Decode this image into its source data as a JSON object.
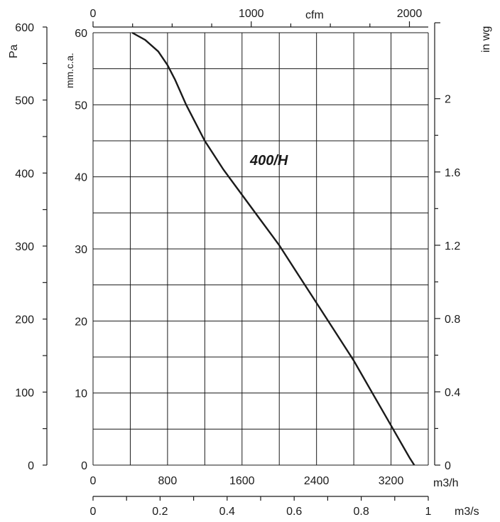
{
  "chart_data": {
    "type": "line",
    "annotation": "400/H",
    "x": {
      "unit": "m3/h",
      "range": [
        0,
        3600
      ],
      "ticks": [
        0,
        800,
        1600,
        2400,
        3200
      ],
      "tick_labels": [
        "0",
        "800",
        "1600",
        "2400",
        "3200"
      ]
    },
    "x_secondary_bottom": {
      "unit": "m3/s",
      "range": [
        0,
        1
      ],
      "ticks": [
        0,
        0.2,
        0.4,
        0.6,
        0.8,
        1
      ],
      "tick_labels": [
        "0",
        "0.2",
        "0.4",
        "0.6",
        "0.8",
        "1"
      ]
    },
    "x_top": {
      "unit": "cfm",
      "range": [
        0,
        2119
      ],
      "ticks": [
        0,
        1000,
        2000
      ],
      "tick_labels": [
        "0",
        "1000",
        "2000"
      ]
    },
    "y": {
      "unit": "mm.c.a.",
      "range": [
        0,
        60
      ],
      "ticks": [
        0,
        10,
        20,
        30,
        40,
        50,
        60
      ],
      "tick_labels": [
        "0",
        "10",
        "20",
        "30",
        "40",
        "50",
        "60"
      ]
    },
    "y_left_outer": {
      "unit": "Pa",
      "range": [
        0,
        600
      ],
      "ticks": [
        0,
        100,
        200,
        300,
        400,
        500,
        600
      ],
      "tick_labels": [
        "0",
        "100",
        "200",
        "300",
        "400",
        "500",
        "600"
      ]
    },
    "y_right": {
      "unit": "in wg",
      "range": [
        0,
        2.36
      ],
      "ticks": [
        0,
        0.4,
        0.8,
        1.2,
        1.6,
        2
      ],
      "tick_labels": [
        "0",
        "0.4",
        "0.8",
        "1.2",
        "1.6",
        "2"
      ]
    },
    "grid": true,
    "series": [
      {
        "points": [
          [
            420,
            60
          ],
          [
            560,
            59
          ],
          [
            700,
            57.4
          ],
          [
            800,
            55.5
          ],
          [
            880,
            53.5
          ],
          [
            1000,
            50
          ],
          [
            1200,
            45
          ],
          [
            1400,
            41
          ],
          [
            1600,
            37.5
          ],
          [
            1800,
            34
          ],
          [
            2000,
            30.5
          ],
          [
            2200,
            26.5
          ],
          [
            2400,
            22.5
          ],
          [
            2600,
            18.5
          ],
          [
            2800,
            14.5
          ],
          [
            3000,
            10
          ],
          [
            3200,
            5.5
          ],
          [
            3400,
            1
          ],
          [
            3450,
            0
          ]
        ]
      }
    ]
  }
}
